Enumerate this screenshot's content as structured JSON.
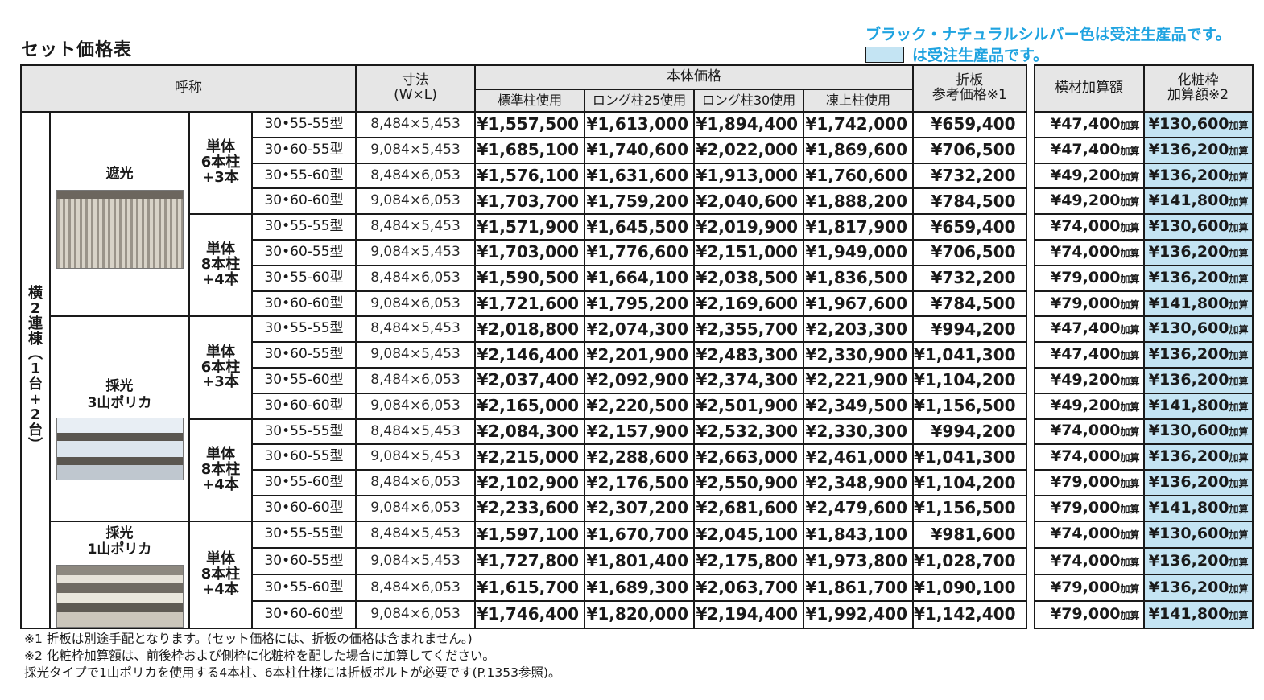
{
  "title": "セット価格表",
  "notice": "ブラック・ナチュラルシルバー色は受注生産品です。",
  "legend_text": "は受注生産品です。",
  "headers": {
    "name": "呼称",
    "dim_line1": "寸法",
    "dim_line2": "(W×L)",
    "body_price": "本体価格",
    "std": "標準柱使用",
    "long25": "ロング柱25使用",
    "long30": "ロング柱30使用",
    "frost": "凍上柱使用",
    "fold_line1": "折板",
    "fold_line2": "参考価格※1",
    "beam": "横材加算額",
    "makeup_line1": "化粧枠",
    "makeup_line2": "加算額※2"
  },
  "vertical_label": [
    "横",
    "2",
    "連",
    "棟",
    "︵",
    "1",
    "台",
    "+",
    "2",
    "台",
    "︶"
  ],
  "types": {
    "shade": "遮光",
    "light3_line1": "採光",
    "light3_line2": "3山ポリカ",
    "light1_line1": "採光",
    "light1_line2": "1山ポリカ"
  },
  "sets": {
    "s6_line1": "単体",
    "s6_line2": "6本柱",
    "s6_line3": "+3本",
    "s8_line1": "単体",
    "s8_line2": "8本柱",
    "s8_line3": "+4本"
  },
  "addon_suffix": "加算",
  "rows": [
    {
      "model": "30•55-55型",
      "dim": "8,484×5,453",
      "std": "¥1,557,500",
      "l25": "¥1,613,000",
      "l30": "¥1,894,400",
      "frost": "¥1,742,000",
      "fold": "¥659,400",
      "beam": "¥47,400",
      "makeup": "¥130,600"
    },
    {
      "model": "30•60-55型",
      "dim": "9,084×5,453",
      "std": "¥1,685,100",
      "l25": "¥1,740,600",
      "l30": "¥2,022,000",
      "frost": "¥1,869,600",
      "fold": "¥706,500",
      "beam": "¥47,400",
      "makeup": "¥136,200"
    },
    {
      "model": "30•55-60型",
      "dim": "8,484×6,053",
      "std": "¥1,576,100",
      "l25": "¥1,631,600",
      "l30": "¥1,913,000",
      "frost": "¥1,760,600",
      "fold": "¥732,200",
      "beam": "¥49,200",
      "makeup": "¥136,200"
    },
    {
      "model": "30•60-60型",
      "dim": "9,084×6,053",
      "std": "¥1,703,700",
      "l25": "¥1,759,200",
      "l30": "¥2,040,600",
      "frost": "¥1,888,200",
      "fold": "¥784,500",
      "beam": "¥49,200",
      "makeup": "¥141,800"
    },
    {
      "model": "30•55-55型",
      "dim": "8,484×5,453",
      "std": "¥1,571,900",
      "l25": "¥1,645,500",
      "l30": "¥2,019,900",
      "frost": "¥1,817,900",
      "fold": "¥659,400",
      "beam": "¥74,000",
      "makeup": "¥130,600"
    },
    {
      "model": "30•60-55型",
      "dim": "9,084×5,453",
      "std": "¥1,703,000",
      "l25": "¥1,776,600",
      "l30": "¥2,151,000",
      "frost": "¥1,949,000",
      "fold": "¥706,500",
      "beam": "¥74,000",
      "makeup": "¥136,200"
    },
    {
      "model": "30•55-60型",
      "dim": "8,484×6,053",
      "std": "¥1,590,500",
      "l25": "¥1,664,100",
      "l30": "¥2,038,500",
      "frost": "¥1,836,500",
      "fold": "¥732,200",
      "beam": "¥79,000",
      "makeup": "¥136,200"
    },
    {
      "model": "30•60-60型",
      "dim": "9,084×6,053",
      "std": "¥1,721,600",
      "l25": "¥1,795,200",
      "l30": "¥2,169,600",
      "frost": "¥1,967,600",
      "fold": "¥784,500",
      "beam": "¥79,000",
      "makeup": "¥141,800"
    },
    {
      "model": "30•55-55型",
      "dim": "8,484×5,453",
      "std": "¥2,018,800",
      "l25": "¥2,074,300",
      "l30": "¥2,355,700",
      "frost": "¥2,203,300",
      "fold": "¥994,200",
      "beam": "¥47,400",
      "makeup": "¥130,600"
    },
    {
      "model": "30•60-55型",
      "dim": "9,084×5,453",
      "std": "¥2,146,400",
      "l25": "¥2,201,900",
      "l30": "¥2,483,300",
      "frost": "¥2,330,900",
      "fold": "¥1,041,300",
      "beam": "¥47,400",
      "makeup": "¥136,200"
    },
    {
      "model": "30•55-60型",
      "dim": "8,484×6,053",
      "std": "¥2,037,400",
      "l25": "¥2,092,900",
      "l30": "¥2,374,300",
      "frost": "¥2,221,900",
      "fold": "¥1,104,200",
      "beam": "¥49,200",
      "makeup": "¥136,200"
    },
    {
      "model": "30•60-60型",
      "dim": "9,084×6,053",
      "std": "¥2,165,000",
      "l25": "¥2,220,500",
      "l30": "¥2,501,900",
      "frost": "¥2,349,500",
      "fold": "¥1,156,500",
      "beam": "¥49,200",
      "makeup": "¥141,800"
    },
    {
      "model": "30•55-55型",
      "dim": "8,484×5,453",
      "std": "¥2,084,300",
      "l25": "¥2,157,900",
      "l30": "¥2,532,300",
      "frost": "¥2,330,300",
      "fold": "¥994,200",
      "beam": "¥74,000",
      "makeup": "¥130,600"
    },
    {
      "model": "30•60-55型",
      "dim": "9,084×5,453",
      "std": "¥2,215,000",
      "l25": "¥2,288,600",
      "l30": "¥2,663,000",
      "frost": "¥2,461,000",
      "fold": "¥1,041,300",
      "beam": "¥74,000",
      "makeup": "¥136,200"
    },
    {
      "model": "30•55-60型",
      "dim": "8,484×6,053",
      "std": "¥2,102,900",
      "l25": "¥2,176,500",
      "l30": "¥2,550,900",
      "frost": "¥2,348,900",
      "fold": "¥1,104,200",
      "beam": "¥79,000",
      "makeup": "¥136,200"
    },
    {
      "model": "30•60-60型",
      "dim": "9,084×6,053",
      "std": "¥2,233,600",
      "l25": "¥2,307,200",
      "l30": "¥2,681,600",
      "frost": "¥2,479,600",
      "fold": "¥1,156,500",
      "beam": "¥79,000",
      "makeup": "¥141,800"
    },
    {
      "model": "30•55-55型",
      "dim": "8,484×5,453",
      "std": "¥1,597,100",
      "l25": "¥1,670,700",
      "l30": "¥2,045,100",
      "frost": "¥1,843,100",
      "fold": "¥981,600",
      "beam": "¥74,000",
      "makeup": "¥130,600"
    },
    {
      "model": "30•60-55型",
      "dim": "9,084×5,453",
      "std": "¥1,727,800",
      "l25": "¥1,801,400",
      "l30": "¥2,175,800",
      "frost": "¥1,973,800",
      "fold": "¥1,028,700",
      "beam": "¥74,000",
      "makeup": "¥136,200"
    },
    {
      "model": "30•55-60型",
      "dim": "8,484×6,053",
      "std": "¥1,615,700",
      "l25": "¥1,689,300",
      "l30": "¥2,063,700",
      "frost": "¥1,861,700",
      "fold": "¥1,090,100",
      "beam": "¥79,000",
      "makeup": "¥136,200"
    },
    {
      "model": "30•60-60型",
      "dim": "9,084×6,053",
      "std": "¥1,746,400",
      "l25": "¥1,820,000",
      "l30": "¥2,194,400",
      "frost": "¥1,992,400",
      "fold": "¥1,142,400",
      "beam": "¥79,000",
      "makeup": "¥141,800"
    }
  ],
  "footnotes": [
    "※1 折板は別途手配となります。(セット価格には、折板の価格は含まれません。)",
    "※2 化粧枠加算額は、前後枠および側枠に化粧枠を配した場合に加算してください。",
    "採光タイプで1山ポリカを使用する4本柱、6本柱仕様には折板ボルトが必要です(P.1353参照)。"
  ],
  "colors": {
    "accent_blue_text": "#1fa3e0",
    "made_to_order_fill": "#c4e4f3",
    "header_gray": "#e6e6e6"
  }
}
